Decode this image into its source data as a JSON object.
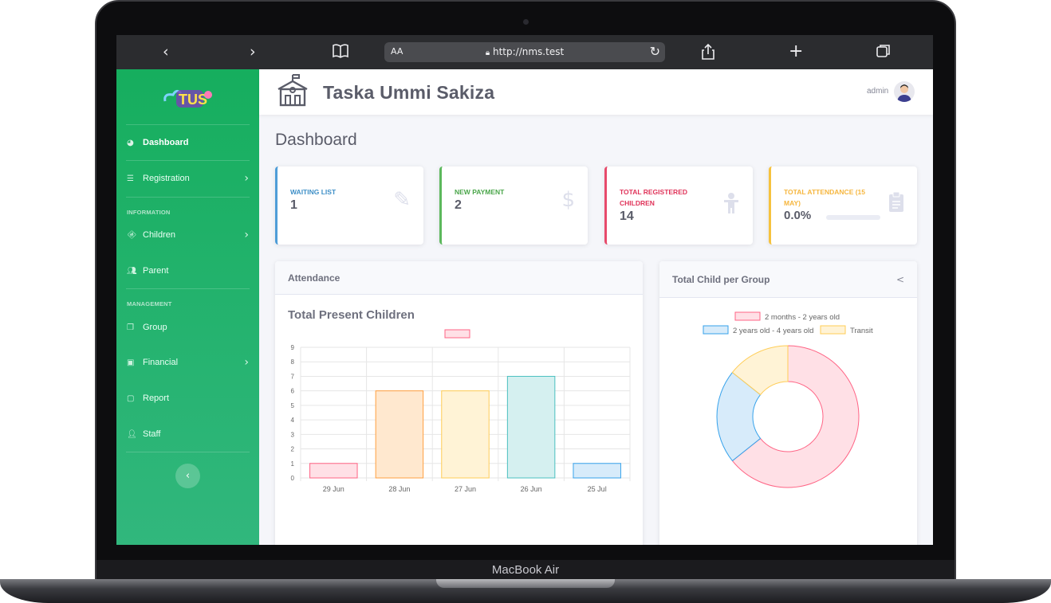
{
  "device": {
    "label": "MacBook Air"
  },
  "browser": {
    "text_size": "AA",
    "url": "http://nms.test"
  },
  "app": {
    "brand_title": "Taska Ummi Sakiza",
    "user": "admin"
  },
  "sidebar": {
    "items": [
      {
        "label": "Dashboard",
        "icon": "dashboard-icon",
        "active": true
      },
      {
        "label": "Registration",
        "icon": "registration-icon",
        "has_submenu": true
      },
      {
        "label": "Children",
        "icon": "child-icon",
        "has_submenu": true
      },
      {
        "label": "Parent",
        "icon": "users-icon"
      },
      {
        "label": "Group",
        "icon": "group-icon"
      },
      {
        "label": "Financial",
        "icon": "money-icon",
        "has_submenu": true
      },
      {
        "label": "Report",
        "icon": "report-icon"
      },
      {
        "label": "Staff",
        "icon": "staff-icon"
      }
    ],
    "headings": {
      "information": "INFORMATION",
      "management": "MANAGEMENT"
    }
  },
  "page_title": "Dashboard",
  "stats": [
    {
      "label": "WAITING LIST",
      "value": "1",
      "color": "#36b9cc",
      "border": "#4e9dd8",
      "icon": "edit-icon"
    },
    {
      "label": "NEW PAYMENT",
      "value": "2",
      "color": "#1cc88a",
      "border": "#5cb85c",
      "icon": "dollar-icon"
    },
    {
      "label": "TOTAL REGISTERED CHILDREN",
      "value": "14",
      "color": "#e74a3b",
      "border": "#e74a6b",
      "icon": "child-icon"
    },
    {
      "label": "TOTAL ATTENDANCE (15 MAY)",
      "value": "0.0%",
      "color": "#f6c23e",
      "border": "#f6c23e",
      "icon": "clipboard-icon",
      "progress": 0
    }
  ],
  "attendance_panel": {
    "header": "Attendance",
    "chart_title": "Total Present Children"
  },
  "group_panel": {
    "header": "Total Child per Group",
    "toggle": "<"
  },
  "chart_data": [
    {
      "type": "bar",
      "title": "Total Present Children",
      "categories": [
        "29 Jun",
        "28 Jun",
        "27 Jun",
        "26 Jun",
        "25 Jul"
      ],
      "values": [
        1,
        6,
        6,
        7,
        1
      ],
      "ylim": [
        0,
        9
      ],
      "yticks": [
        "0",
        "1",
        "2",
        "3",
        "4",
        "5",
        "6",
        "7",
        "8",
        "9"
      ],
      "fill_colors": [
        "#ffe0e6",
        "#ffe8cf",
        "#fff3d6",
        "#d5f0f0",
        "#d7ebfa"
      ],
      "stroke_colors": [
        "#ff6384",
        "#ff9f40",
        "#ffcd56",
        "#4bc0c0",
        "#36a2eb"
      ],
      "grid": true,
      "legend": "top"
    },
    {
      "type": "pie",
      "categories": [
        "2 months - 2 years old",
        "2 years old - 4 years old",
        "Transit"
      ],
      "values": [
        9,
        3,
        2
      ],
      "fill_colors": [
        "#ffe0e6",
        "#d7ebfa",
        "#fff3d6"
      ],
      "stroke_colors": [
        "#ff6384",
        "#36a2eb",
        "#ffcd56"
      ],
      "legend": "top"
    }
  ]
}
